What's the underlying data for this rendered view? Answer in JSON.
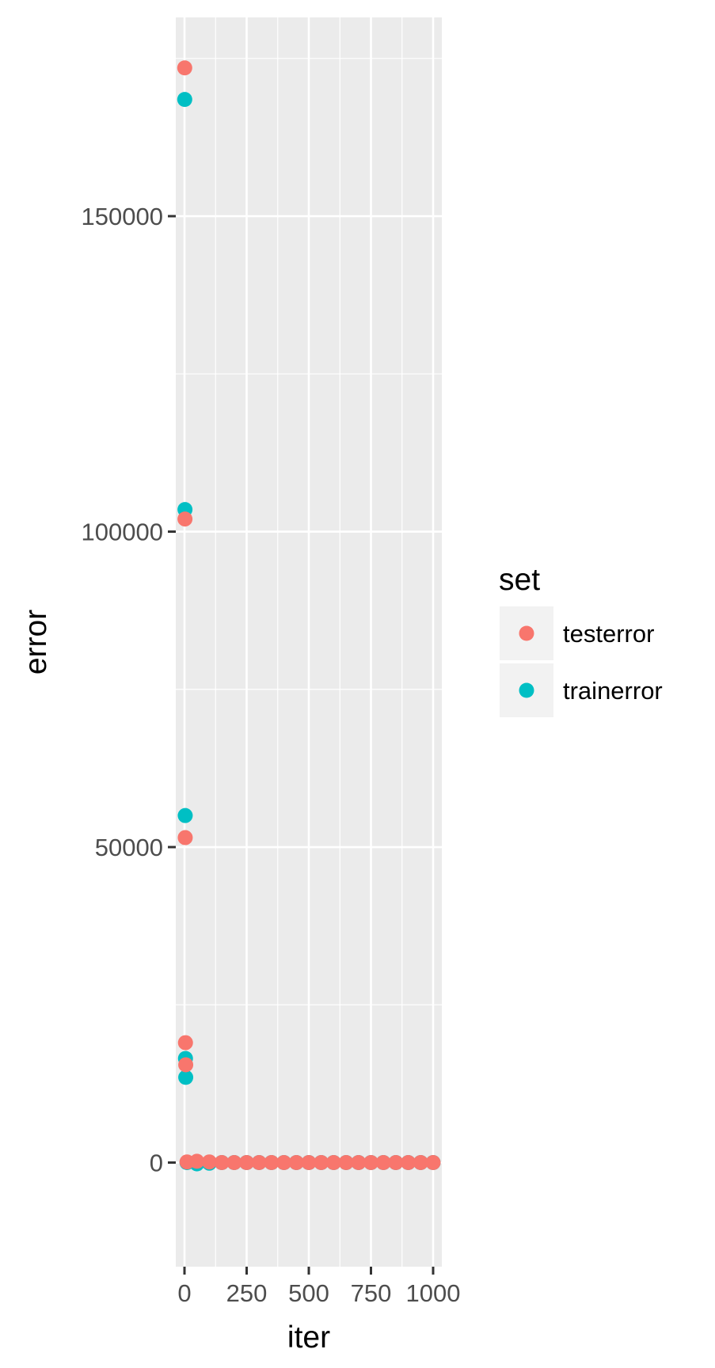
{
  "chart_data": {
    "type": "scatter",
    "title": "",
    "xlabel": "iter",
    "ylabel": "error",
    "xlim": [
      -35,
      1035
    ],
    "ylim": [
      -16500,
      181500
    ],
    "x_ticks": [
      0,
      250,
      500,
      750,
      1000
    ],
    "x_tick_labels": [
      "0",
      "250",
      "500",
      "750",
      "1000"
    ],
    "y_ticks": [
      0,
      50000,
      100000,
      150000
    ],
    "y_tick_labels": [
      "0",
      "50000",
      "100000",
      "150000"
    ],
    "grid": true,
    "background": "#ebebeb",
    "legend": {
      "title": "set",
      "position": "right"
    },
    "series": [
      {
        "name": "testerror",
        "color": "#f8766d",
        "x": [
          1,
          2,
          3,
          4,
          5,
          10,
          50,
          100,
          150,
          200,
          250,
          300,
          350,
          400,
          450,
          500,
          550,
          600,
          650,
          700,
          750,
          800,
          850,
          900,
          950,
          1000
        ],
        "y": [
          173500,
          102000,
          51500,
          19000,
          15500,
          100,
          200,
          100,
          0,
          0,
          0,
          0,
          0,
          0,
          0,
          0,
          0,
          0,
          0,
          0,
          0,
          0,
          0,
          0,
          0,
          0
        ]
      },
      {
        "name": "trainerror",
        "color": "#00bfc4",
        "x": [
          1,
          2,
          3,
          4,
          5,
          10,
          50,
          100,
          150,
          200,
          250,
          300,
          350,
          400,
          450,
          500,
          550,
          600,
          650,
          700,
          750,
          800,
          850,
          900,
          950,
          1000
        ],
        "y": [
          168500,
          103500,
          55000,
          16500,
          13500,
          0,
          -200,
          -100,
          0,
          0,
          0,
          0,
          0,
          0,
          0,
          0,
          0,
          0,
          0,
          0,
          0,
          0,
          0,
          0,
          0,
          0
        ]
      }
    ]
  }
}
